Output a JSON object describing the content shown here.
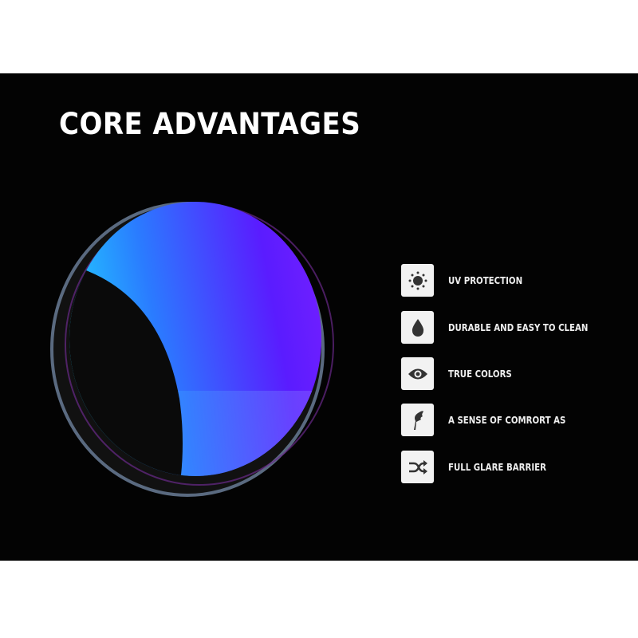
{
  "title": "CORE ADVANTAGES",
  "features": [
    {
      "label": "UV PROTECTION",
      "icon": "sun-icon"
    },
    {
      "label": "DURABLE AND EASY TO CLEAN",
      "icon": "water-drop-icon"
    },
    {
      "label": "TRUE COLORS",
      "icon": "eye-icon"
    },
    {
      "label": "A SENSE OF COMRORT AS",
      "icon": "feather-icon"
    },
    {
      "label": "FULL GLARE BARRIER",
      "icon": "shuffle-icon"
    }
  ],
  "colors": {
    "background": "#030303",
    "lens_blue": "#2f7bff",
    "lens_cyan": "#1fd8ff",
    "lens_violet": "#6a1cff"
  }
}
